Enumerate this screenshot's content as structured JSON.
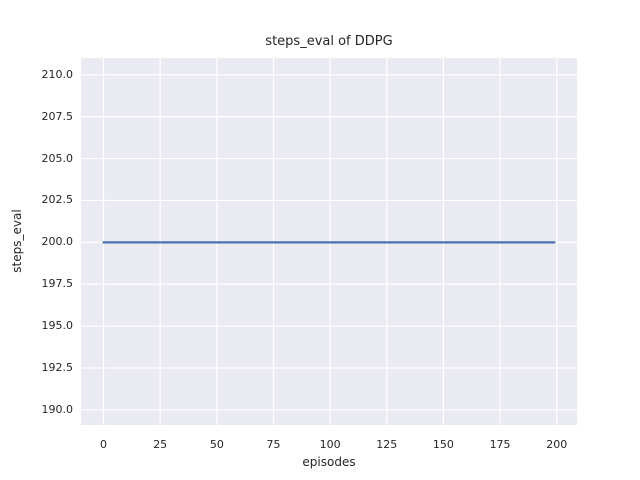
{
  "figure": {
    "title": "steps_eval of DDPG",
    "xlabel": "episodes",
    "ylabel": "steps_eval"
  },
  "chart_data": {
    "type": "line",
    "title": "steps_eval of DDPG",
    "xlabel": "episodes",
    "ylabel": "steps_eval",
    "xlim": [
      -9.95,
      208.95
    ],
    "ylim": [
      189.1,
      211.0
    ],
    "x_ticks": [
      0,
      25,
      50,
      75,
      100,
      125,
      150,
      175,
      200
    ],
    "x_tick_labels": [
      "0",
      "25",
      "50",
      "75",
      "100",
      "125",
      "150",
      "175",
      "200"
    ],
    "y_ticks": [
      190.0,
      192.5,
      195.0,
      197.5,
      200.0,
      202.5,
      205.0,
      207.5,
      210.0
    ],
    "y_tick_labels": [
      "190.0",
      "192.5",
      "195.0",
      "197.5",
      "200.0",
      "202.5",
      "205.0",
      "207.5",
      "210.0"
    ],
    "grid": true,
    "legend": false,
    "series": [
      {
        "name": "steps_eval",
        "x": [
          0,
          199
        ],
        "y": [
          200,
          200
        ]
      }
    ],
    "colors": {
      "figure_background": "#ffffff",
      "plot_background": "#eaeaf2",
      "grid": "#ffffff",
      "text": "#262626",
      "line": "#4c72b0"
    }
  }
}
